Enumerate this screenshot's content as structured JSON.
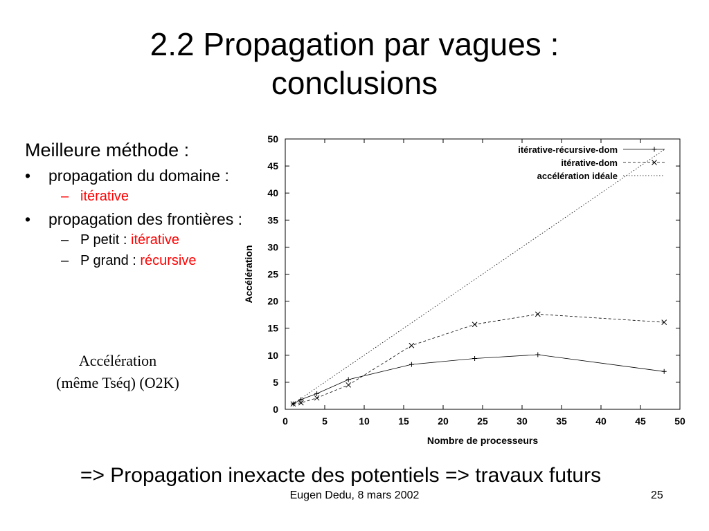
{
  "slide": {
    "title_line1": "2.2 Propagation par vagues :",
    "title_line2": "conclusions",
    "heading": "Meilleure méthode :",
    "bullet1": "propagation du domaine :",
    "bullet1_sub1": "itérative",
    "bullet2": "propagation des frontières :",
    "bullet2_sub1_prefix": "P petit : ",
    "bullet2_sub1_value": "itérative",
    "bullet2_sub2_prefix": "P grand : ",
    "bullet2_sub2_value": "récursive",
    "caption_line1": "Accélération",
    "caption_line2": "(même Tséq) (O2K)",
    "conclusion": "=> Propagation inexacte des potentiels  =>  travaux futurs",
    "footer": "Eugen Dedu, 8 mars 2002",
    "page_number": "25",
    "accent_color": "#ff0000"
  },
  "chart_data": {
    "type": "line",
    "xlabel": "Nombre de processeurs",
    "ylabel": "Accélération",
    "xlim": [
      0,
      50
    ],
    "ylim": [
      0,
      50
    ],
    "xticks": [
      0,
      5,
      10,
      15,
      20,
      25,
      30,
      35,
      40,
      45,
      50
    ],
    "yticks": [
      0,
      5,
      10,
      15,
      20,
      25,
      30,
      35,
      40,
      45,
      50
    ],
    "grid": false,
    "legend_position": "top-right",
    "series": [
      {
        "name": "itérative-récursive-dom",
        "marker": "+",
        "dash": "solid",
        "x": [
          1,
          2,
          4,
          8,
          16,
          24,
          32,
          48
        ],
        "y": [
          1,
          1.8,
          2.9,
          5.5,
          8.3,
          9.4,
          10.1,
          7.0
        ]
      },
      {
        "name": "itérative-dom",
        "marker": "x",
        "dash": "dashed",
        "x": [
          1,
          2,
          4,
          8,
          16,
          24,
          32,
          48
        ],
        "y": [
          1,
          1.2,
          2.1,
          4.5,
          11.8,
          15.7,
          17.6,
          16.1
        ]
      },
      {
        "name": "accélération idéale",
        "marker": "none",
        "dash": "dotted",
        "x": [
          1,
          48
        ],
        "y": [
          1,
          48
        ]
      }
    ]
  }
}
